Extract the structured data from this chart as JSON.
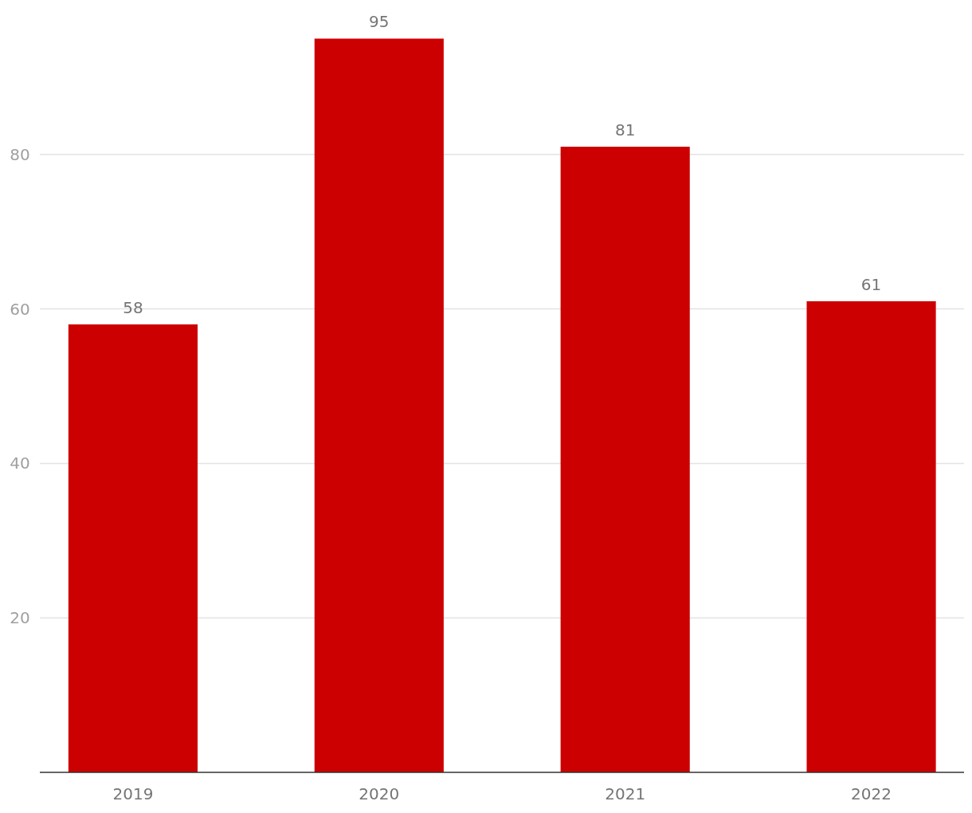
{
  "chart_data": {
    "type": "bar",
    "categories": [
      "2019",
      "2020",
      "2021",
      "2022"
    ],
    "values": [
      58,
      95,
      81,
      61
    ],
    "color": "#cc0000",
    "ylim": [
      0,
      100
    ],
    "yticks": [
      20,
      40,
      60,
      80
    ],
    "grid": "y",
    "data_labels": true
  }
}
